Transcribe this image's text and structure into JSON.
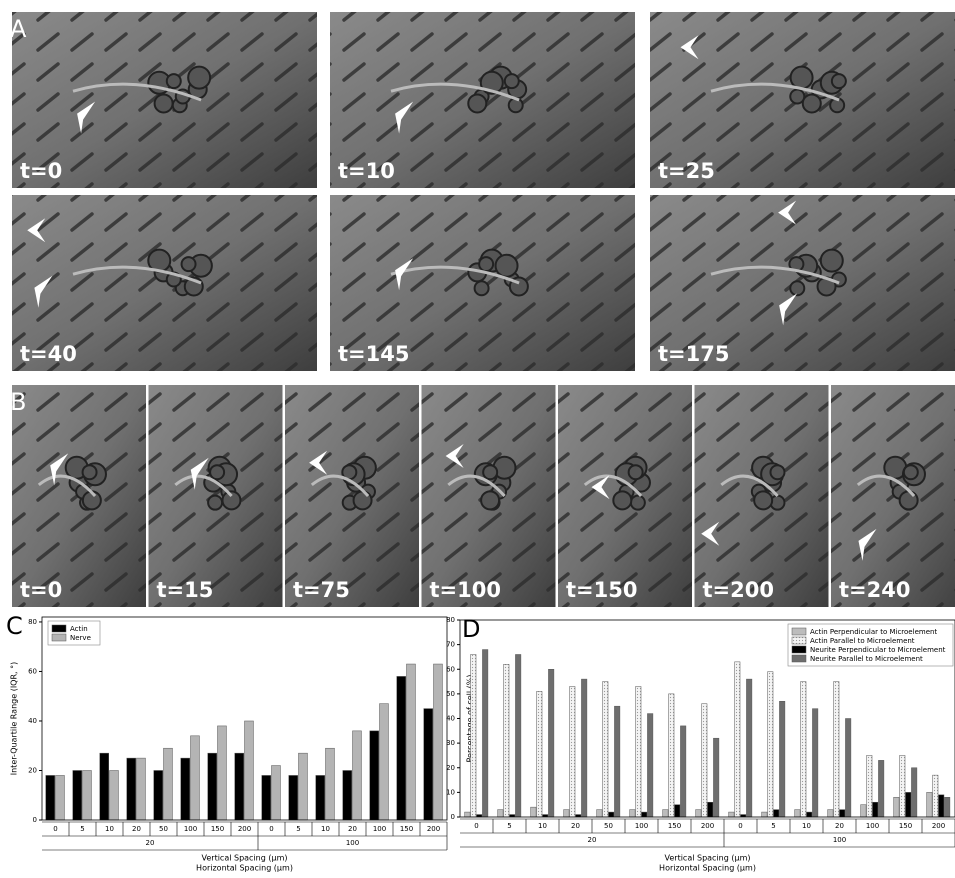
{
  "figure": {
    "panel_a": {
      "label": "A",
      "frames": [
        "t=0",
        "t=10",
        "t=25",
        "t=40",
        "t=145",
        "t=175"
      ]
    },
    "panel_b": {
      "label": "B",
      "frames": [
        "t=0",
        "t=15",
        "t=75",
        "t=100",
        "t=150",
        "t=200",
        "t=240"
      ]
    }
  },
  "chart_data": [
    {
      "type": "bar",
      "label": "C",
      "ylabel": "Inter-Quartile Range (IQR, °)",
      "xlabels": [
        "Vertical Spacing (µm)",
        "Horizontal Spacing (µm)"
      ],
      "groups": [
        {
          "label": "20",
          "categories": [
            "0",
            "5",
            "10",
            "20",
            "50",
            "100",
            "150",
            "200"
          ]
        },
        {
          "label": "100",
          "categories": [
            "0",
            "5",
            "10",
            "20",
            "100",
            "150",
            "200"
          ]
        }
      ],
      "series": [
        {
          "name": "Actin",
          "color": "#000000",
          "values": [
            18,
            20,
            27,
            25,
            20,
            25,
            27,
            27,
            18,
            18,
            18,
            20,
            36,
            58,
            45
          ]
        },
        {
          "name": "Nerve",
          "color": "#b4b4b4",
          "values": [
            18,
            20,
            20,
            25,
            29,
            34,
            38,
            40,
            22,
            27,
            29,
            36,
            47,
            63,
            63
          ]
        }
      ],
      "ylim": [
        0,
        82
      ],
      "yticks": [
        0,
        20,
        40,
        60,
        80
      ],
      "legend": "upper-left"
    },
    {
      "type": "bar",
      "label": "D",
      "ylabel": "Percentage of cell (%)",
      "xlabels": [
        "Vertical Spacing (µm)",
        "Horizontal Spacing (µm)"
      ],
      "groups": [
        {
          "label": "20",
          "categories": [
            "0",
            "5",
            "10",
            "20",
            "50",
            "100",
            "150",
            "200"
          ]
        },
        {
          "label": "100",
          "categories": [
            "0",
            "5",
            "10",
            "20",
            "100",
            "150",
            "200"
          ]
        }
      ],
      "series": [
        {
          "name": "Actin Perpendicular to Microelement",
          "color": "#bcbcbc",
          "values": [
            2,
            3,
            4,
            3,
            3,
            3,
            3,
            3,
            2,
            2,
            3,
            3,
            5,
            8,
            10
          ]
        },
        {
          "name": "Actin Parallel to Microelement",
          "color": "#f2f2f2",
          "values": [
            66,
            62,
            51,
            53,
            55,
            53,
            50,
            46,
            63,
            59,
            55,
            55,
            25,
            25,
            17
          ]
        },
        {
          "name": "Neurite Perpendicular to Microelement",
          "color": "#000000",
          "values": [
            1,
            1,
            1,
            1,
            2,
            2,
            5,
            6,
            1,
            3,
            2,
            3,
            6,
            10,
            9
          ]
        },
        {
          "name": "Neurite Parallel to Microelement",
          "color": "#6e6e6e",
          "values": [
            68,
            66,
            60,
            56,
            45,
            42,
            37,
            32,
            56,
            47,
            44,
            40,
            23,
            20,
            8
          ]
        }
      ],
      "ylim": [
        0,
        80
      ],
      "yticks": [
        0,
        10,
        20,
        30,
        40,
        50,
        60,
        70,
        80
      ],
      "legend": "upper-right"
    }
  ]
}
